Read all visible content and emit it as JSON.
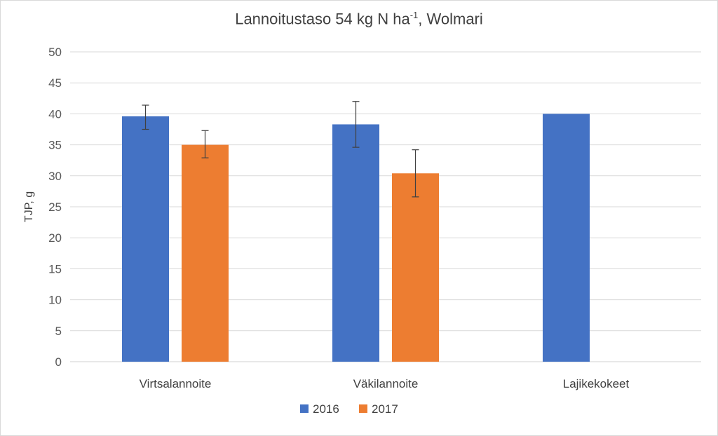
{
  "chart_data": {
    "type": "bar",
    "title_main": "Lannoitustaso 54 kg N ha",
    "title_sup": "-1",
    "title_suffix": ", Wolmari",
    "ylabel": "TJP, g",
    "xlabel": "",
    "ylim": [
      0,
      50
    ],
    "yticks": [
      0,
      5,
      10,
      15,
      20,
      25,
      30,
      35,
      40,
      45,
      50
    ],
    "grid": true,
    "legend_position": "bottom",
    "categories": [
      "Virtsalannoite",
      "Väkilannoite",
      "Lajikekokeet"
    ],
    "series": [
      {
        "name": "2016",
        "color": "#4472c4",
        "values": [
          39.6,
          38.3,
          40.0
        ],
        "error_low": [
          37.5,
          34.6,
          null
        ],
        "error_high": [
          41.4,
          42.0,
          null
        ]
      },
      {
        "name": "2017",
        "color": "#ed7d31",
        "values": [
          35.0,
          30.4,
          null
        ],
        "error_low": [
          32.9,
          26.6,
          null
        ],
        "error_high": [
          37.3,
          34.2,
          null
        ]
      }
    ]
  }
}
